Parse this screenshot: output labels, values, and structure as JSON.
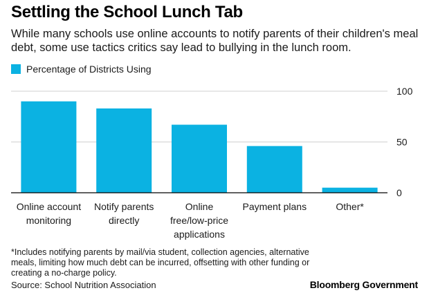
{
  "header": {
    "title": "Settling the School Lunch Tab",
    "subtitle": "While many schools use online accounts to notify parents of their children's meal debt, some use tactics critics say lead to bullying in the lunch room."
  },
  "colors": {
    "bar": "#0bb2e2",
    "grid": "#cfcfcf",
    "axis": "#000000"
  },
  "chart_data": {
    "type": "bar",
    "categories": [
      [
        "Online account",
        "monitoring"
      ],
      [
        "Notify parents",
        "directly"
      ],
      [
        "Online",
        "free/low-price",
        "applications"
      ],
      [
        "Payment plans"
      ],
      [
        "Other*"
      ]
    ],
    "series": [
      {
        "name": "Percentage of Districts Using",
        "values": [
          90,
          83,
          67,
          46,
          5
        ]
      }
    ],
    "ylim": [
      0,
      100
    ],
    "yticks": [
      0,
      50,
      100
    ],
    "ytick_labels": [
      "0",
      "50",
      "100"
    ],
    "grid": true,
    "y_axis_side": "right",
    "legend_position": "top-left"
  },
  "footnote": "*Includes notifying parents by mail/via student, collection agencies, alternative meals, limiting how much debt can be incurred, offsetting with other funding or creating a no-charge policy.",
  "source": "Source: School Nutrition Association",
  "brand": "Bloomberg Government"
}
